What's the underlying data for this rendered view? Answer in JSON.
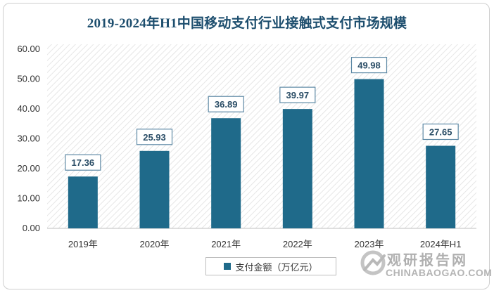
{
  "chart_data": {
    "type": "bar",
    "title": "2019-2024年H1中国移动支付行业接触式支付市场规模",
    "categories": [
      "2019年",
      "2020年",
      "2021年",
      "2022年",
      "2023年",
      "2024年H1"
    ],
    "series": [
      {
        "name": "支付金额（万亿元）",
        "values": [
          17.36,
          25.93,
          36.89,
          39.97,
          49.98,
          27.65
        ],
        "color": "#1f6a8a"
      }
    ],
    "value_labels": [
      "17.36",
      "25.93",
      "36.89",
      "39.97",
      "49.98",
      "27.65"
    ],
    "ylim": [
      0,
      60
    ],
    "yticks": [
      "0.00",
      "10.00",
      "20.00",
      "30.00",
      "40.00",
      "50.00",
      "60.00"
    ],
    "xlabel": "",
    "ylabel": "",
    "grid": false,
    "legend_position": "bottom",
    "plot_background": "diagonal-hatch"
  },
  "watermark": {
    "name": "观研报告网",
    "url": "CHINABAOGAO.COM"
  }
}
